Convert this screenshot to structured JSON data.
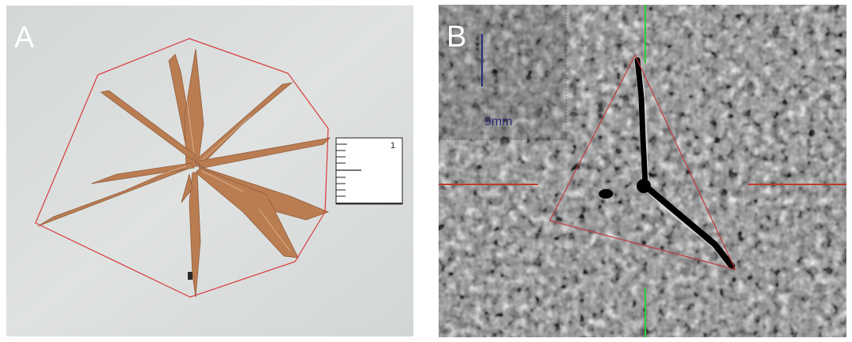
{
  "panels": [
    {
      "label": "A",
      "ruler": {
        "number": "1"
      },
      "colors": {
        "background": "#d7dbd9",
        "outline": "#d9393b",
        "specimen": "#b8774a"
      }
    },
    {
      "label": "B",
      "scale_bar": {
        "label": "9mm"
      },
      "colors": {
        "background": "#7f7f7f",
        "outline": "#c0393b",
        "crosshair_horizontal": "#c0392b",
        "crosshair_vertical": "#2ecc40",
        "scale_bar": "#2c2d7a",
        "crack": "#000000"
      }
    }
  ]
}
